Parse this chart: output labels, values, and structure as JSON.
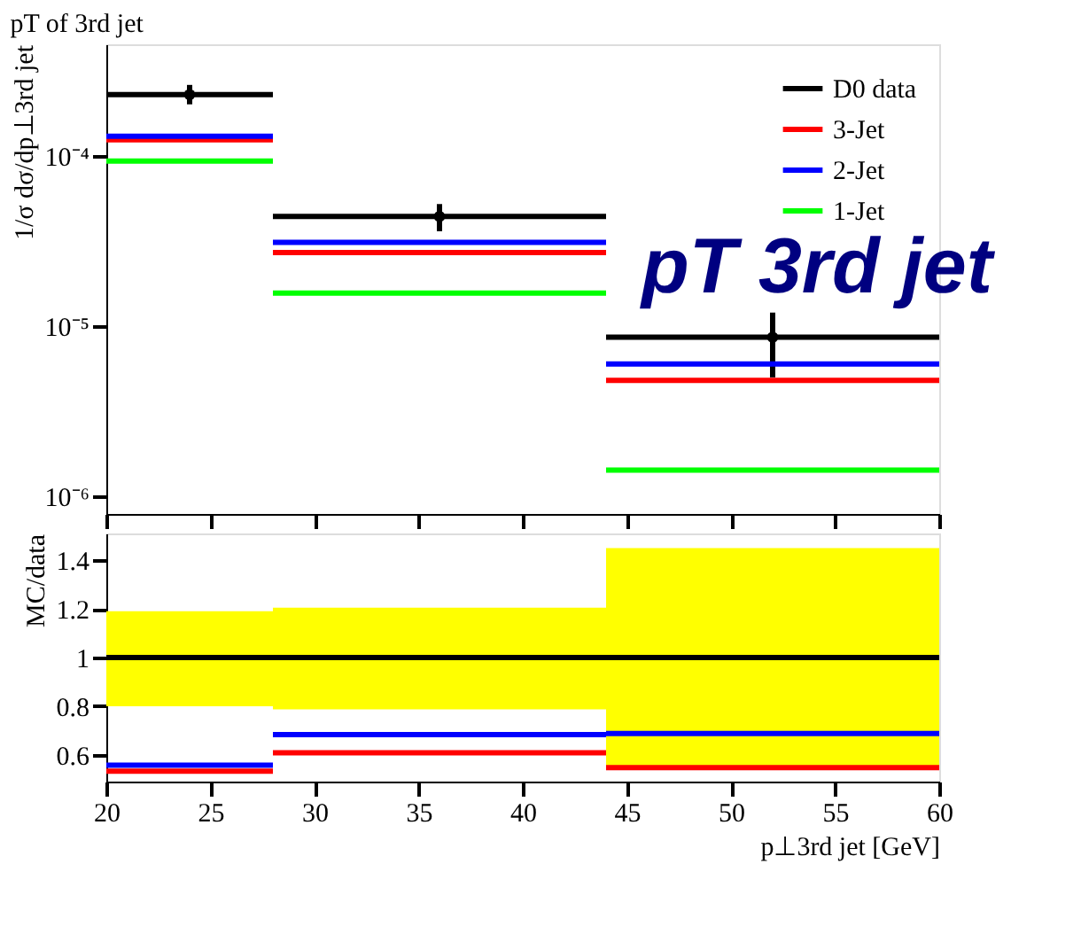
{
  "chart_data": [
    {
      "type": "line",
      "title": "pT of 3rd jet",
      "ylabel": "1/σ dσ/dp⊥3rd jet",
      "log": "y",
      "xlim": [
        20,
        60
      ],
      "xticks": [
        20,
        25,
        30,
        35,
        40,
        45,
        50,
        55,
        60
      ],
      "ylim": [
        7.9e-07,
        0.00045
      ],
      "yticks": [
        {
          "value": 1e-06,
          "label": "10⁻⁶"
        },
        {
          "value": 1e-05,
          "label": "10⁻⁵"
        },
        {
          "value": 0.0001,
          "label": "10⁻⁴"
        }
      ],
      "tick_labels": "y",
      "grid": false,
      "legend": "top right",
      "marker": "none",
      "line_style": "solid",
      "annotations": [
        "pT 3rd jet"
      ],
      "series": [
        {
          "name": "D0 data",
          "type": "scatter",
          "marker": "circle",
          "color": "#000000",
          "x": [
            24,
            36,
            52
          ],
          "values": [
            0.000228,
            4.4e-05,
            8.6e-06
          ],
          "errors": [
            [
              0.0002,
              0.00026
            ],
            [
              3.6e-05,
              5.2e-05
            ],
            [
              5e-06,
              1.2e-05
            ]
          ],
          "xerrors": [
            [
              20,
              28
            ],
            [
              28,
              44
            ],
            [
              44,
              60
            ]
          ]
        },
        {
          "name": "3-Jet",
          "color": "#ff0000",
          "x": [
            20,
            28,
            null,
            28,
            44,
            null,
            44,
            60
          ],
          "values": [
            0.000124,
            0.000124,
            null,
            2.7e-05,
            2.7e-05,
            null,
            4.8e-06,
            4.8e-06
          ]
        },
        {
          "name": "2-Jet",
          "color": "#0000ff",
          "x": [
            20,
            28,
            null,
            28,
            44,
            null,
            44,
            60
          ],
          "values": [
            0.00013,
            0.00013,
            null,
            3.1e-05,
            3.1e-05,
            null,
            6e-06,
            6e-06
          ]
        },
        {
          "name": "1-Jet",
          "color": "#00ff00",
          "x": [
            20,
            28,
            null,
            28,
            44,
            null,
            44,
            60
          ],
          "values": [
            9.3e-05,
            9.3e-05,
            null,
            1.56e-05,
            1.56e-05,
            null,
            1.43e-06,
            1.43e-06
          ]
        }
      ]
    },
    {
      "type": "line",
      "xlabel": "p⊥3rd jet [GeV]",
      "ylabel": "MC/data",
      "xlim": [
        20,
        60
      ],
      "xticks": [
        20,
        25,
        30,
        35,
        40,
        45,
        50,
        55,
        60
      ],
      "ylim": [
        0.49,
        1.51
      ],
      "yticks": [
        0.6,
        0.8,
        1,
        1.2,
        1.4
      ],
      "grid": false,
      "legend": false,
      "marker": "none",
      "line_style": "solid",
      "ref_lines": [
        {
          "axis": "y",
          "value": 1,
          "color": "#000000"
        }
      ],
      "series": [
        {
          "color": "#ffff00",
          "x": [
            20,
            28,
            null,
            28,
            44,
            null,
            44,
            60
          ],
          "values": [
            null,
            null,
            null,
            null,
            null,
            null,
            null,
            null
          ],
          "lower": [
            0.8,
            0.8,
            null,
            0.787,
            0.787,
            null,
            0.55,
            0.55
          ],
          "upper": [
            1.19,
            1.19,
            null,
            1.205,
            1.205,
            null,
            1.45,
            1.45
          ]
        },
        {
          "color": "#ff0000",
          "x": [
            20,
            28,
            null,
            28,
            44,
            null,
            44,
            60
          ],
          "values": [
            0.533,
            0.533,
            null,
            0.608,
            0.608,
            null,
            0.547,
            0.547
          ]
        },
        {
          "color": "#0000ff",
          "x": [
            20,
            28,
            null,
            28,
            44,
            null,
            44,
            60
          ],
          "values": [
            0.557,
            0.557,
            null,
            0.683,
            0.683,
            null,
            0.688,
            0.688
          ]
        }
      ]
    }
  ]
}
